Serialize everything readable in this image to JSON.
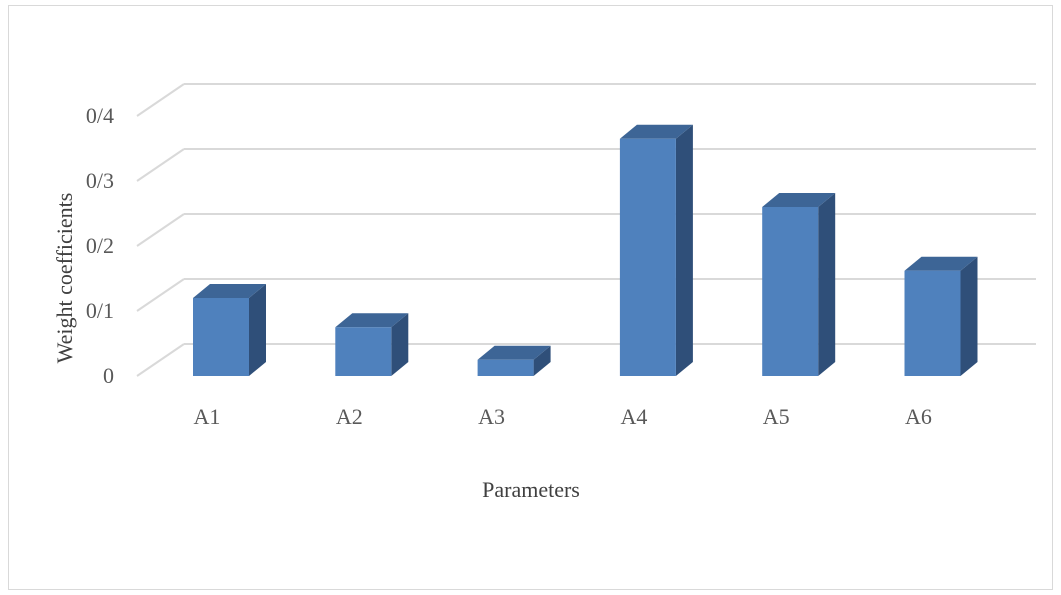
{
  "chart_data": {
    "type": "bar",
    "style": "3d-column",
    "categories": [
      "A1",
      "A2",
      "A3",
      "A4",
      "A5",
      "A6"
    ],
    "values": [
      0.12,
      0.075,
      0.025,
      0.365,
      0.26,
      0.162
    ],
    "xlabel": "Parameters",
    "ylabel": "Weight coefficients",
    "yticks": [
      "0",
      "0/1",
      "0/2",
      "0/3",
      "0/4"
    ],
    "ylim": [
      0,
      0.4
    ],
    "grid": true,
    "legend": "none",
    "colors": {
      "bar_front": "#4f81bd",
      "bar_side": "#2f4f79",
      "bar_top": "#3d6596",
      "grid": "#d9d9d9"
    }
  }
}
